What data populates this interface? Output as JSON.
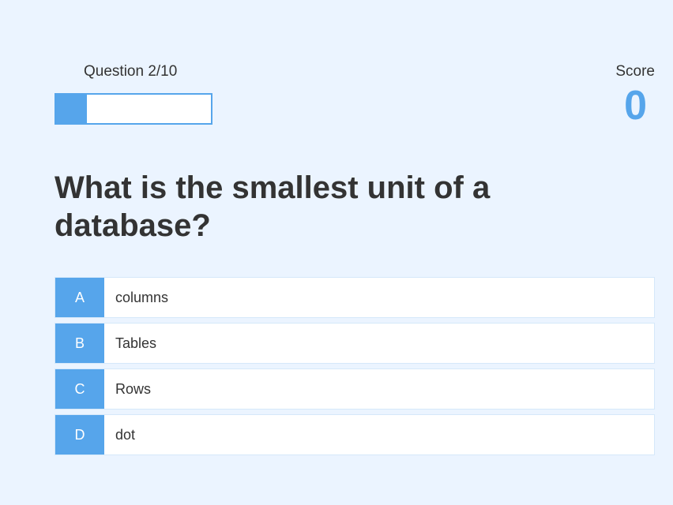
{
  "hud": {
    "progress_text": "Question 2/10",
    "progress_fraction": 0.2,
    "score_label": "Score",
    "score_value": "0"
  },
  "question": "What is the smallest unit of a database?",
  "choices": [
    {
      "prefix": "A",
      "text": "columns"
    },
    {
      "prefix": "B",
      "text": "Tables"
    },
    {
      "prefix": "C",
      "text": "Rows"
    },
    {
      "prefix": "D",
      "text": "dot"
    }
  ],
  "colors": {
    "accent": "#56a5eb",
    "background": "#ebf4ff",
    "text": "#333333"
  }
}
